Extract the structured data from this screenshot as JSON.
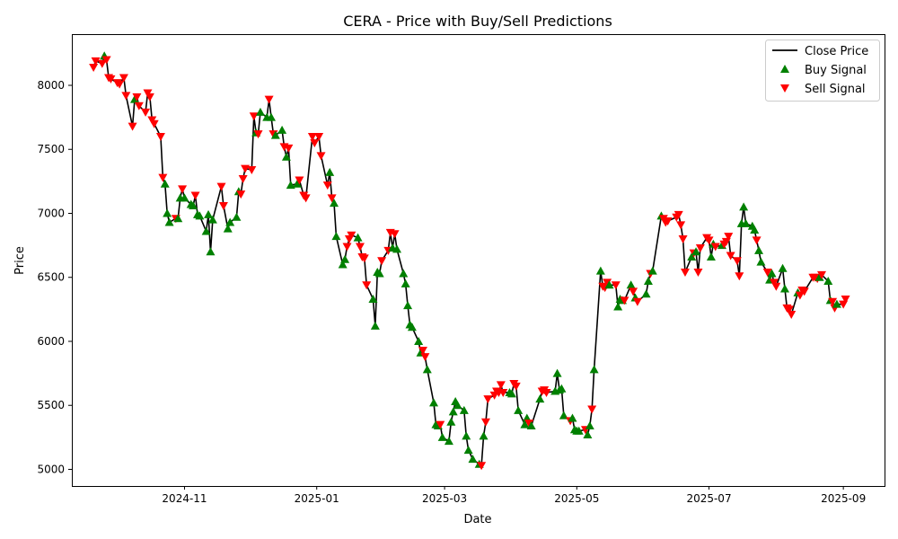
{
  "chart_data": {
    "type": "line",
    "title": "CERA - Price with Buy/Sell Predictions",
    "xlabel": "Date",
    "ylabel": "Price",
    "x_range": [
      "2024-09-10",
      "2025-09-20"
    ],
    "ylim": [
      4870,
      8400
    ],
    "grid": false,
    "legend_position": "top-right",
    "x_ticks": [
      {
        "date": "2024-11-01",
        "label": "2024-11"
      },
      {
        "date": "2025-01-01",
        "label": "2025-01"
      },
      {
        "date": "2025-03-01",
        "label": "2025-03"
      },
      {
        "date": "2025-05-01",
        "label": "2025-05"
      },
      {
        "date": "2025-07-01",
        "label": "2025-07"
      },
      {
        "date": "2025-09-01",
        "label": "2025-09"
      }
    ],
    "y_ticks": [
      5000,
      5500,
      6000,
      6500,
      7000,
      7500,
      8000
    ],
    "series": [
      {
        "name": "Close Price",
        "color": "#000000",
        "style": "line"
      },
      {
        "name": "Buy Signal",
        "color": "#008000",
        "marker": "triangle-up"
      },
      {
        "name": "Sell Signal",
        "color": "#ff0000",
        "marker": "triangle-down"
      }
    ],
    "points": [
      [
        "2024-09-20",
        8140,
        "S"
      ],
      [
        "2024-09-21",
        8190,
        "S"
      ],
      [
        "2024-09-24",
        8170,
        "S"
      ],
      [
        "2024-09-25",
        8230,
        "B"
      ],
      [
        "2024-09-26",
        8200,
        "S"
      ],
      [
        "2024-09-27",
        8060,
        "S"
      ],
      [
        "2024-09-28",
        8050,
        "S"
      ],
      [
        "2024-10-01",
        8020,
        "S"
      ],
      [
        "2024-10-02",
        8010,
        "S"
      ],
      [
        "2024-10-04",
        8060,
        "S"
      ],
      [
        "2024-10-05",
        7920,
        "S"
      ],
      [
        "2024-10-08",
        7680,
        "S"
      ],
      [
        "2024-10-09",
        7890,
        "B"
      ],
      [
        "2024-10-10",
        7910,
        "S"
      ],
      [
        "2024-10-11",
        7840,
        "S"
      ],
      [
        "2024-10-14",
        7790,
        "S"
      ],
      [
        "2024-10-15",
        7940,
        "S"
      ],
      [
        "2024-10-16",
        7910,
        "S"
      ],
      [
        "2024-10-17",
        7730,
        "S"
      ],
      [
        "2024-10-18",
        7700,
        "S"
      ],
      [
        "2024-10-21",
        7600,
        "S"
      ],
      [
        "2024-10-22",
        7280,
        "S"
      ],
      [
        "2024-10-23",
        7230,
        "B"
      ],
      [
        "2024-10-24",
        7000,
        "B"
      ],
      [
        "2024-10-25",
        6930,
        "B"
      ],
      [
        "2024-10-28",
        6960,
        "S"
      ],
      [
        "2024-10-29",
        6960,
        "B"
      ],
      [
        "2024-10-30",
        7120,
        "B"
      ],
      [
        "2024-10-31",
        7190,
        "S"
      ],
      [
        "2024-11-01",
        7120,
        "B"
      ],
      [
        "2024-11-04",
        7070,
        "B"
      ],
      [
        "2024-11-05",
        7060,
        "B"
      ],
      [
        "2024-11-06",
        7140,
        "S"
      ],
      [
        "2024-11-07",
        6990,
        "B"
      ],
      [
        "2024-11-08",
        6980,
        "B"
      ],
      [
        "2024-11-11",
        6860,
        "B"
      ],
      [
        "2024-11-12",
        6990,
        "B"
      ],
      [
        "2024-11-13",
        6700,
        "B"
      ],
      [
        "2024-11-14",
        6950,
        "B"
      ],
      [
        "2024-11-18",
        7210,
        "S"
      ],
      [
        "2024-11-19",
        7060,
        "S"
      ],
      [
        "2024-11-21",
        6880,
        "B"
      ],
      [
        "2024-11-22",
        6930,
        "B"
      ],
      [
        "2024-11-25",
        6970,
        "B"
      ],
      [
        "2024-11-26",
        7170,
        "B"
      ],
      [
        "2024-11-27",
        7150,
        "S"
      ],
      [
        "2024-11-28",
        7270,
        "S"
      ],
      [
        "2024-11-29",
        7350,
        "S"
      ],
      [
        "2024-12-02",
        7340,
        "S"
      ],
      [
        "2024-12-03",
        7760,
        "S"
      ],
      [
        "2024-12-04",
        7630,
        "B"
      ],
      [
        "2024-12-05",
        7620,
        "S"
      ],
      [
        "2024-12-06",
        7790,
        "B"
      ],
      [
        "2024-12-09",
        7750,
        "B"
      ],
      [
        "2024-12-10",
        7890,
        "S"
      ],
      [
        "2024-12-11",
        7750,
        "B"
      ],
      [
        "2024-12-12",
        7620,
        "S"
      ],
      [
        "2024-12-13",
        7610,
        "B"
      ],
      [
        "2024-12-16",
        7650,
        "B"
      ],
      [
        "2024-12-17",
        7520,
        "S"
      ],
      [
        "2024-12-18",
        7440,
        "B"
      ],
      [
        "2024-12-19",
        7510,
        "S"
      ],
      [
        "2024-12-20",
        7220,
        "B"
      ],
      [
        "2024-12-23",
        7230,
        "B"
      ],
      [
        "2024-12-24",
        7260,
        "S"
      ],
      [
        "2024-12-26",
        7140,
        "S"
      ],
      [
        "2024-12-27",
        7120,
        "S"
      ],
      [
        "2024-12-30",
        7600,
        "S"
      ],
      [
        "2024-12-31",
        7550,
        "S"
      ],
      [
        "2025-01-02",
        7600,
        "S"
      ],
      [
        "2025-01-03",
        7450,
        "S"
      ],
      [
        "2025-01-06",
        7220,
        "S"
      ],
      [
        "2025-01-07",
        7320,
        "B"
      ],
      [
        "2025-01-08",
        7120,
        "S"
      ],
      [
        "2025-01-09",
        7080,
        "B"
      ],
      [
        "2025-01-10",
        6820,
        "B"
      ],
      [
        "2025-01-13",
        6600,
        "B"
      ],
      [
        "2025-01-14",
        6640,
        "B"
      ],
      [
        "2025-01-15",
        6740,
        "S"
      ],
      [
        "2025-01-16",
        6800,
        "S"
      ],
      [
        "2025-01-17",
        6830,
        "S"
      ],
      [
        "2025-01-20",
        6810,
        "B"
      ],
      [
        "2025-01-21",
        6740,
        "S"
      ],
      [
        "2025-01-22",
        6660,
        "S"
      ],
      [
        "2025-01-23",
        6650,
        "S"
      ],
      [
        "2025-01-24",
        6440,
        "S"
      ],
      [
        "2025-01-27",
        6330,
        "B"
      ],
      [
        "2025-01-28",
        6120,
        "B"
      ],
      [
        "2025-01-29",
        6540,
        "B"
      ],
      [
        "2025-01-30",
        6530,
        "B"
      ],
      [
        "2025-01-31",
        6630,
        "S"
      ],
      [
        "2025-02-03",
        6710,
        "S"
      ],
      [
        "2025-02-04",
        6850,
        "S"
      ],
      [
        "2025-02-05",
        6730,
        "B"
      ],
      [
        "2025-02-06",
        6840,
        "S"
      ],
      [
        "2025-02-07",
        6720,
        "B"
      ],
      [
        "2025-02-10",
        6530,
        "B"
      ],
      [
        "2025-02-11",
        6450,
        "B"
      ],
      [
        "2025-02-12",
        6280,
        "B"
      ],
      [
        "2025-02-13",
        6130,
        "B"
      ],
      [
        "2025-02-14",
        6110,
        "B"
      ],
      [
        "2025-02-17",
        6000,
        "B"
      ],
      [
        "2025-02-18",
        5910,
        "B"
      ],
      [
        "2025-02-19",
        5930,
        "S"
      ],
      [
        "2025-02-20",
        5880,
        "S"
      ],
      [
        "2025-02-21",
        5780,
        "B"
      ],
      [
        "2025-02-24",
        5520,
        "B"
      ],
      [
        "2025-02-25",
        5350,
        "B"
      ],
      [
        "2025-02-26",
        5340,
        "B"
      ],
      [
        "2025-02-27",
        5350,
        "S"
      ],
      [
        "2025-02-28",
        5250,
        "B"
      ],
      [
        "2025-03-03",
        5220,
        "B"
      ],
      [
        "2025-03-04",
        5370,
        "B"
      ],
      [
        "2025-03-05",
        5450,
        "B"
      ],
      [
        "2025-03-06",
        5530,
        "B"
      ],
      [
        "2025-03-07",
        5500,
        "B"
      ],
      [
        "2025-03-10",
        5460,
        "B"
      ],
      [
        "2025-03-11",
        5260,
        "B"
      ],
      [
        "2025-03-12",
        5150,
        "B"
      ],
      [
        "2025-03-14",
        5080,
        "B"
      ],
      [
        "2025-03-17",
        5040,
        "B"
      ],
      [
        "2025-03-18",
        5030,
        "S"
      ],
      [
        "2025-03-19",
        5260,
        "B"
      ],
      [
        "2025-03-20",
        5370,
        "S"
      ],
      [
        "2025-03-21",
        5550,
        "S"
      ],
      [
        "2025-03-24",
        5580,
        "S"
      ],
      [
        "2025-03-25",
        5610,
        "S"
      ],
      [
        "2025-03-26",
        5600,
        "S"
      ],
      [
        "2025-03-27",
        5660,
        "S"
      ],
      [
        "2025-03-28",
        5600,
        "S"
      ],
      [
        "2025-03-31",
        5600,
        "B"
      ],
      [
        "2025-04-01",
        5590,
        "B"
      ],
      [
        "2025-04-02",
        5670,
        "S"
      ],
      [
        "2025-04-03",
        5650,
        "S"
      ],
      [
        "2025-04-04",
        5460,
        "B"
      ],
      [
        "2025-04-07",
        5350,
        "B"
      ],
      [
        "2025-04-08",
        5400,
        "B"
      ],
      [
        "2025-04-09",
        5360,
        "S"
      ],
      [
        "2025-04-10",
        5340,
        "B"
      ],
      [
        "2025-04-14",
        5550,
        "B"
      ],
      [
        "2025-04-15",
        5610,
        "S"
      ],
      [
        "2025-04-16",
        5620,
        "S"
      ],
      [
        "2025-04-17",
        5600,
        "S"
      ],
      [
        "2025-04-21",
        5610,
        "B"
      ],
      [
        "2025-04-22",
        5750,
        "B"
      ],
      [
        "2025-04-23",
        5620,
        "B"
      ],
      [
        "2025-04-24",
        5630,
        "B"
      ],
      [
        "2025-04-25",
        5420,
        "B"
      ],
      [
        "2025-04-28",
        5380,
        "S"
      ],
      [
        "2025-04-29",
        5400,
        "B"
      ],
      [
        "2025-04-30",
        5310,
        "B"
      ],
      [
        "2025-05-01",
        5300,
        "B"
      ],
      [
        "2025-05-02",
        5300,
        "B"
      ],
      [
        "2025-05-05",
        5310,
        "S"
      ],
      [
        "2025-05-06",
        5270,
        "B"
      ],
      [
        "2025-05-07",
        5340,
        "B"
      ],
      [
        "2025-05-08",
        5470,
        "S"
      ],
      [
        "2025-05-09",
        5780,
        "B"
      ],
      [
        "2025-05-12",
        6550,
        "B"
      ],
      [
        "2025-05-13",
        6430,
        "S"
      ],
      [
        "2025-05-14",
        6420,
        "S"
      ],
      [
        "2025-05-15",
        6460,
        "S"
      ],
      [
        "2025-05-16",
        6440,
        "B"
      ],
      [
        "2025-05-19",
        6440,
        "S"
      ],
      [
        "2025-05-20",
        6270,
        "B"
      ],
      [
        "2025-05-21",
        6330,
        "B"
      ],
      [
        "2025-05-22",
        6320,
        "B"
      ],
      [
        "2025-05-23",
        6320,
        "S"
      ],
      [
        "2025-05-26",
        6440,
        "B"
      ],
      [
        "2025-05-27",
        6390,
        "S"
      ],
      [
        "2025-05-28",
        6340,
        "B"
      ],
      [
        "2025-05-29",
        6310,
        "S"
      ],
      [
        "2025-06-02",
        6370,
        "B"
      ],
      [
        "2025-06-03",
        6470,
        "B"
      ],
      [
        "2025-06-04",
        6530,
        "S"
      ],
      [
        "2025-06-05",
        6550,
        "B"
      ],
      [
        "2025-06-09",
        6980,
        "B"
      ],
      [
        "2025-06-10",
        6960,
        "S"
      ],
      [
        "2025-06-11",
        6930,
        "S"
      ],
      [
        "2025-06-12",
        6940,
        "S"
      ],
      [
        "2025-06-16",
        6970,
        "S"
      ],
      [
        "2025-06-17",
        6990,
        "S"
      ],
      [
        "2025-06-18",
        6910,
        "S"
      ],
      [
        "2025-06-19",
        6800,
        "S"
      ],
      [
        "2025-06-20",
        6540,
        "S"
      ],
      [
        "2025-06-23",
        6660,
        "B"
      ],
      [
        "2025-06-24",
        6690,
        "S"
      ],
      [
        "2025-06-25",
        6700,
        "B"
      ],
      [
        "2025-06-26",
        6540,
        "S"
      ],
      [
        "2025-06-27",
        6730,
        "S"
      ],
      [
        "2025-06-30",
        6810,
        "S"
      ],
      [
        "2025-07-01",
        6790,
        "S"
      ],
      [
        "2025-07-02",
        6660,
        "B"
      ],
      [
        "2025-07-03",
        6760,
        "B"
      ],
      [
        "2025-07-04",
        6740,
        "S"
      ],
      [
        "2025-07-07",
        6750,
        "B"
      ],
      [
        "2025-07-08",
        6760,
        "S"
      ],
      [
        "2025-07-09",
        6780,
        "S"
      ],
      [
        "2025-07-10",
        6820,
        "S"
      ],
      [
        "2025-07-11",
        6670,
        "S"
      ],
      [
        "2025-07-14",
        6630,
        "S"
      ],
      [
        "2025-07-15",
        6510,
        "S"
      ],
      [
        "2025-07-16",
        6920,
        "B"
      ],
      [
        "2025-07-17",
        7050,
        "B"
      ],
      [
        "2025-07-18",
        6920,
        "B"
      ],
      [
        "2025-07-21",
        6900,
        "B"
      ],
      [
        "2025-07-22",
        6870,
        "B"
      ],
      [
        "2025-07-23",
        6790,
        "S"
      ],
      [
        "2025-07-24",
        6710,
        "B"
      ],
      [
        "2025-07-25",
        6620,
        "B"
      ],
      [
        "2025-07-28",
        6540,
        "S"
      ],
      [
        "2025-07-29",
        6480,
        "B"
      ],
      [
        "2025-07-30",
        6530,
        "B"
      ],
      [
        "2025-07-31",
        6460,
        "S"
      ],
      [
        "2025-08-01",
        6430,
        "S"
      ],
      [
        "2025-08-04",
        6570,
        "B"
      ],
      [
        "2025-08-05",
        6410,
        "B"
      ],
      [
        "2025-08-06",
        6260,
        "S"
      ],
      [
        "2025-08-07",
        6250,
        "S"
      ],
      [
        "2025-08-08",
        6210,
        "S"
      ],
      [
        "2025-08-11",
        6380,
        "B"
      ],
      [
        "2025-08-12",
        6360,
        "S"
      ],
      [
        "2025-08-13",
        6400,
        "S"
      ],
      [
        "2025-08-14",
        6390,
        "S"
      ],
      [
        "2025-08-18",
        6500,
        "S"
      ],
      [
        "2025-08-19",
        6500,
        "S"
      ],
      [
        "2025-08-20",
        6490,
        "S"
      ],
      [
        "2025-08-21",
        6500,
        "B"
      ],
      [
        "2025-08-22",
        6520,
        "S"
      ],
      [
        "2025-08-25",
        6470,
        "B"
      ],
      [
        "2025-08-26",
        6320,
        "B"
      ],
      [
        "2025-08-27",
        6310,
        "S"
      ],
      [
        "2025-08-28",
        6260,
        "S"
      ],
      [
        "2025-08-29",
        6290,
        "B"
      ],
      [
        "2025-09-01",
        6290,
        "S"
      ],
      [
        "2025-09-02",
        6330,
        "S"
      ]
    ]
  }
}
